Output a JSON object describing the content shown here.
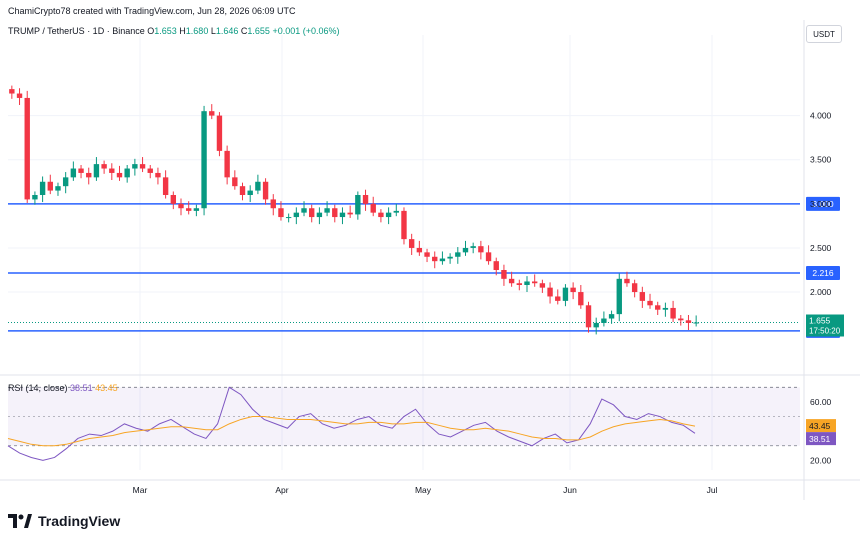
{
  "header": {
    "attribution": "ChamiCrypto78 created with TradingView.com, Jun 28, 2026 06:09 UTC"
  },
  "symbol": {
    "name": "TRUMP / TetherUS · 1D · Binance",
    "open_label": "O",
    "open": "1.653",
    "high_label": "H",
    "high": "1.680",
    "low_label": "L",
    "low": "1.646",
    "close_label": "C",
    "close": "1.655",
    "change": "+0.001 (+0.06%)"
  },
  "currency": "USDT",
  "rsi": {
    "label": "RSI (14, close)",
    "value": "38.51",
    "ma": "43.45"
  },
  "brand": "TradingView",
  "colors": {
    "up": "#089981",
    "down": "#f23645",
    "level": "#2962ff",
    "rsi": "#7e57c2",
    "rsi_ma": "#f7a525"
  },
  "chart_data": [
    {
      "type": "candlestick",
      "title": "TRUMP / TetherUS · 1D · Binance",
      "x_ticks": [
        "Mar",
        "Apr",
        "May",
        "Jun",
        "Jul"
      ],
      "y_ticks": [
        "4.000",
        "3.500",
        "3.000",
        "2.500",
        "2.000"
      ],
      "ylim": [
        1.4,
        4.8
      ],
      "horizontal_levels": [
        {
          "value": 3.0,
          "label": "3.000"
        },
        {
          "value": 2.216,
          "label": "2.216"
        },
        {
          "value": 1.56,
          "label": "1.560"
        }
      ],
      "last_price": {
        "value": 1.655,
        "label": "1.655",
        "countdown": "17:50:20"
      },
      "series": [
        {
          "name": "TRUMP / TetherUS",
          "close_path": [
            4.25,
            4.2,
            3.05,
            3.1,
            3.25,
            3.15,
            3.2,
            3.3,
            3.4,
            3.35,
            3.3,
            3.45,
            3.4,
            3.35,
            3.3,
            3.4,
            3.45,
            3.4,
            3.35,
            3.3,
            3.1,
            3.0,
            2.95,
            2.92,
            2.95,
            4.05,
            4.0,
            3.6,
            3.3,
            3.2,
            3.1,
            3.15,
            3.25,
            3.05,
            2.95,
            2.85,
            2.85,
            2.9,
            2.95,
            2.85,
            2.9,
            2.95,
            2.85,
            2.9,
            2.88,
            3.1,
            3.0,
            2.9,
            2.85,
            2.9,
            2.92,
            2.6,
            2.5,
            2.45,
            2.4,
            2.35,
            2.38,
            2.4,
            2.45,
            2.5,
            2.52,
            2.45,
            2.35,
            2.25,
            2.15,
            2.1,
            2.08,
            2.12,
            2.1,
            2.05,
            1.95,
            1.9,
            2.05,
            2.0,
            1.85,
            1.6,
            1.65,
            1.7,
            1.75,
            2.15,
            2.1,
            2.0,
            1.9,
            1.85,
            1.8,
            1.82,
            1.7,
            1.68,
            1.65,
            1.655
          ]
        },
        {
          "name": "RSI (14, close)",
          "ylim": [
            10,
            75
          ],
          "y_ticks": [
            "60.00",
            "20.00"
          ],
          "levels": [
            70,
            30
          ],
          "values": [
            30,
            25,
            22,
            20,
            22,
            28,
            35,
            38,
            37,
            40,
            45,
            42,
            40,
            45,
            48,
            43,
            38,
            35,
            45,
            70,
            65,
            55,
            48,
            45,
            42,
            50,
            52,
            45,
            42,
            44,
            48,
            50,
            44,
            42,
            50,
            55,
            45,
            38,
            36,
            40,
            44,
            46,
            40,
            36,
            33,
            30,
            35,
            38,
            32,
            34,
            45,
            62,
            58,
            50,
            48,
            52,
            50,
            46,
            44,
            38.51
          ]
        },
        {
          "name": "RSI MA",
          "values": [
            35,
            33,
            31,
            30,
            30,
            31,
            33,
            35,
            36,
            37,
            39,
            40,
            41,
            42,
            43,
            43,
            42,
            41,
            41,
            45,
            48,
            50,
            50,
            49,
            48,
            48,
            48,
            47,
            46,
            45,
            45,
            46,
            46,
            45,
            45,
            46,
            46,
            44,
            42,
            41,
            41,
            42,
            41,
            40,
            38,
            36,
            35,
            35,
            34,
            34,
            36,
            40,
            43,
            45,
            46,
            47,
            48,
            47,
            45,
            43.45
          ]
        }
      ],
      "rsi_labels": {
        "rsi": "38.51",
        "ma": "43.45"
      }
    }
  ]
}
